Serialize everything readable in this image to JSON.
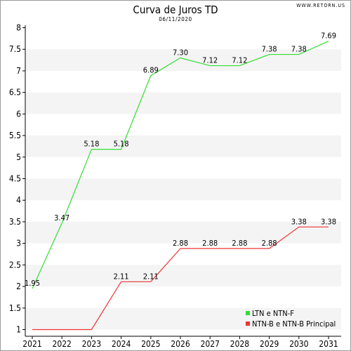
{
  "header": {
    "title": "Curva de Juros TD",
    "subtitle": "06/11/2020",
    "watermark": "WWW.RETORN.US"
  },
  "chart_data": {
    "type": "line",
    "title": "Curva de Juros TD",
    "subtitle": "06/11/2020",
    "xlabel": "",
    "ylabel": "",
    "categories": [
      "2021",
      "2022",
      "2023",
      "2024",
      "2025",
      "2026",
      "2027",
      "2028",
      "2029",
      "2030",
      "2031"
    ],
    "ylim": [
      0.8,
      8.2
    ],
    "yticks": [
      "1",
      "1.5",
      "2",
      "2.5",
      "3",
      "3.5",
      "4",
      "4.5",
      "5",
      "5.5",
      "6",
      "6.5",
      "7",
      "7.5",
      "8"
    ],
    "grid": "alternating horizontal bands",
    "legend_position": "bottom-right",
    "series": [
      {
        "name": "LTN e NTN-F",
        "color": "#33dd33",
        "points": [
          {
            "x": 0.0,
            "y": 1.95,
            "label": "1.95"
          },
          {
            "x": 1.0,
            "y": 3.47,
            "label": "3.47"
          },
          {
            "x": 2.0,
            "y": 5.18,
            "label": "5.18"
          },
          {
            "x": 3.0,
            "y": 5.18,
            "label": "5.18"
          },
          {
            "x": 4.0,
            "y": 6.89,
            "label": "6.89"
          },
          {
            "x": 5.0,
            "y": 7.3,
            "label": "7.30"
          },
          {
            "x": 6.0,
            "y": 7.12,
            "label": "7.12"
          },
          {
            "x": 7.0,
            "y": 7.12,
            "label": "7.12"
          },
          {
            "x": 8.0,
            "y": 7.38,
            "label": "7.38"
          },
          {
            "x": 9.0,
            "y": 7.38,
            "label": "7.38"
          },
          {
            "x": 10.0,
            "y": 7.69,
            "label": "7.69"
          }
        ]
      },
      {
        "name": "NTN-B e NTN-B Principal",
        "color": "#ee3333",
        "points": [
          {
            "x": 0.0,
            "y": 1.0,
            "label": ""
          },
          {
            "x": 1.0,
            "y": 1.0,
            "label": ""
          },
          {
            "x": 2.0,
            "y": 1.0,
            "label": ""
          },
          {
            "x": 3.0,
            "y": 2.11,
            "label": "2.11"
          },
          {
            "x": 4.0,
            "y": 2.11,
            "label": "2.11"
          },
          {
            "x": 5.0,
            "y": 2.88,
            "label": "2.88"
          },
          {
            "x": 6.0,
            "y": 2.88,
            "label": "2.88"
          },
          {
            "x": 7.0,
            "y": 2.88,
            "label": "2.88"
          },
          {
            "x": 8.0,
            "y": 2.88,
            "label": "2.88"
          },
          {
            "x": 9.0,
            "y": 3.38,
            "label": "3.38"
          },
          {
            "x": 10.0,
            "y": 3.38,
            "label": "3.38"
          }
        ]
      }
    ]
  }
}
